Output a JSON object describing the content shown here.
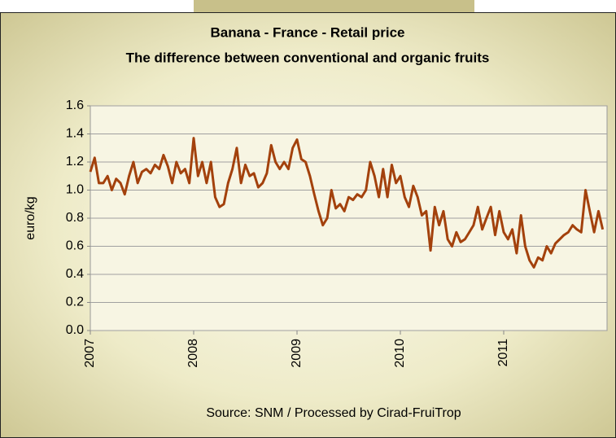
{
  "chart_data": {
    "type": "line",
    "title": "Banana - France - Retail price",
    "subtitle": "The difference between conventional and organic fruits",
    "ylabel": "euro/kg",
    "source": "Source: SNM / Processed by Cirad-FruiTrop",
    "xlim": [
      2007,
      2012
    ],
    "xticks": [
      2007,
      2008,
      2009,
      2010,
      2011
    ],
    "ylim": [
      0,
      1.6
    ],
    "yticks": [
      {
        "value": 0,
        "label": "0.0"
      },
      0.2,
      0.4,
      0.6,
      0.8,
      {
        "value": 1,
        "label": "1.0"
      },
      1.2,
      1.4,
      1.6
    ],
    "grid": true,
    "x": [
      2007,
      2007.042,
      2007.083,
      2007.125,
      2007.167,
      2007.208,
      2007.25,
      2007.292,
      2007.333,
      2007.375,
      2007.417,
      2007.458,
      2007.5,
      2007.542,
      2007.583,
      2007.625,
      2007.667,
      2007.708,
      2007.75,
      2007.792,
      2007.833,
      2007.875,
      2007.917,
      2007.958,
      2008,
      2008.042,
      2008.083,
      2008.125,
      2008.167,
      2008.208,
      2008.25,
      2008.292,
      2008.333,
      2008.375,
      2008.417,
      2008.458,
      2008.5,
      2008.542,
      2008.583,
      2008.625,
      2008.667,
      2008.708,
      2008.75,
      2008.792,
      2008.833,
      2008.875,
      2008.917,
      2008.958,
      2009,
      2009.042,
      2009.083,
      2009.125,
      2009.167,
      2009.208,
      2009.25,
      2009.292,
      2009.333,
      2009.375,
      2009.417,
      2009.458,
      2009.5,
      2009.542,
      2009.583,
      2009.625,
      2009.667,
      2009.708,
      2009.75,
      2009.792,
      2009.833,
      2009.875,
      2009.917,
      2009.958,
      2010,
      2010.042,
      2010.083,
      2010.125,
      2010.167,
      2010.208,
      2010.25,
      2010.292,
      2010.333,
      2010.375,
      2010.417,
      2010.458,
      2010.5,
      2010.542,
      2010.583,
      2010.625,
      2010.667,
      2010.708,
      2010.75,
      2010.792,
      2010.833,
      2010.875,
      2010.917,
      2010.958,
      2011,
      2011.042,
      2011.083,
      2011.125,
      2011.167,
      2011.208,
      2011.25,
      2011.292,
      2011.333,
      2011.375,
      2011.417,
      2011.458,
      2011.5,
      2011.542,
      2011.583,
      2011.625,
      2011.667,
      2011.708,
      2011.75,
      2011.792,
      2011.833,
      2011.875,
      2011.917,
      2011.958
    ],
    "series": [
      {
        "color": "#a3410c",
        "values": [
          1.13,
          1.23,
          1.05,
          1.05,
          1.1,
          1.0,
          1.08,
          1.05,
          0.97,
          1.1,
          1.2,
          1.05,
          1.13,
          1.15,
          1.12,
          1.18,
          1.15,
          1.25,
          1.17,
          1.05,
          1.2,
          1.12,
          1.15,
          1.05,
          1.37,
          1.1,
          1.2,
          1.05,
          1.2,
          0.95,
          0.88,
          0.9,
          1.05,
          1.15,
          1.3,
          1.05,
          1.18,
          1.1,
          1.12,
          1.02,
          1.05,
          1.12,
          1.32,
          1.2,
          1.15,
          1.2,
          1.15,
          1.3,
          1.36,
          1.22,
          1.2,
          1.1,
          0.97,
          0.85,
          0.75,
          0.8,
          1.0,
          0.87,
          0.9,
          0.85,
          0.95,
          0.93,
          0.97,
          0.95,
          1.0,
          1.2,
          1.1,
          0.95,
          1.15,
          0.95,
          1.18,
          1.05,
          1.1,
          0.95,
          0.88,
          1.03,
          0.95,
          0.82,
          0.85,
          0.57,
          0.88,
          0.75,
          0.85,
          0.65,
          0.6,
          0.7,
          0.63,
          0.65,
          0.7,
          0.75,
          0.88,
          0.72,
          0.8,
          0.88,
          0.68,
          0.85,
          0.7,
          0.65,
          0.72,
          0.55,
          0.82,
          0.6,
          0.5,
          0.45,
          0.52,
          0.5,
          0.6,
          0.55,
          0.62,
          0.65,
          0.68,
          0.7,
          0.75,
          0.72,
          0.7,
          1.0,
          0.85,
          0.7,
          0.85,
          0.72
        ]
      }
    ]
  }
}
